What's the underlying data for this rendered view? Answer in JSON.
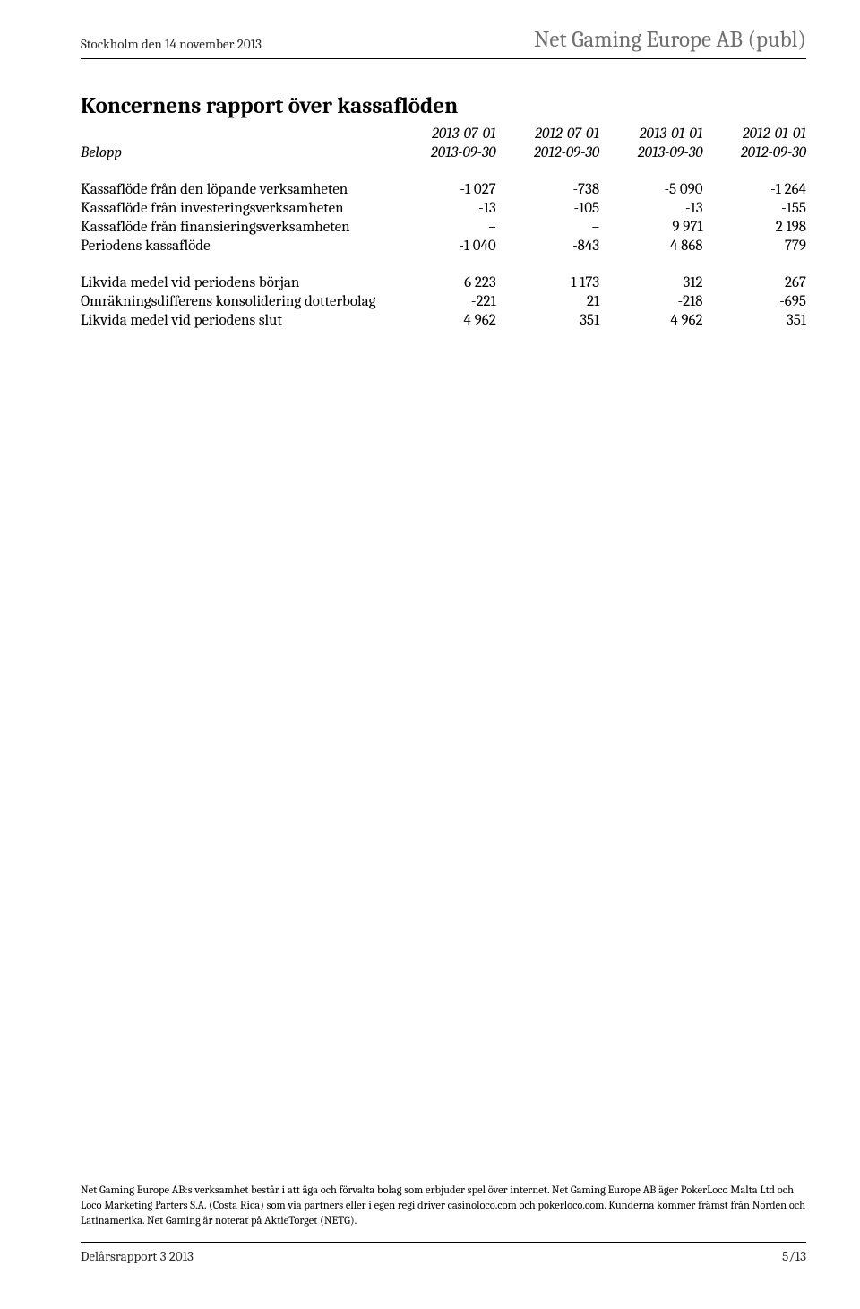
{
  "header": {
    "left": "Stockholm den 14 november 2013",
    "right": "Net Gaming Europe AB (publ)"
  },
  "title": "Koncernens rapport över kassaflöden",
  "table": {
    "period_header_top": [
      "2013-07-01",
      "2012-07-01",
      "2013-01-01",
      "2012-01-01"
    ],
    "period_header_bot": [
      "2013-09-30",
      "2012-09-30",
      "2013-09-30",
      "2012-09-30"
    ],
    "belopp_label": "Belopp",
    "rows_a": [
      {
        "label": "Kassaflöde från den löpande verksamheten",
        "v": [
          "-1 027",
          "-738",
          "-5 090",
          "-1 264"
        ]
      },
      {
        "label": "Kassaflöde från investeringsverksamheten",
        "v": [
          "-13",
          "-105",
          "-13",
          "-155"
        ]
      },
      {
        "label": "Kassaflöde från finansieringsverksamheten",
        "v": [
          "–",
          "–",
          "9 971",
          "2 198"
        ]
      }
    ],
    "row_bold": {
      "label": "Periodens kassaflöde",
      "v": [
        "-1 040",
        "-843",
        "4 868",
        "779"
      ]
    },
    "rows_b": [
      {
        "label": "Likvida medel vid periodens början",
        "v": [
          "6 223",
          "1 173",
          "312",
          "267"
        ]
      },
      {
        "label": "Omräkningsdifferens konsolidering dotterbolag",
        "v": [
          "-221",
          "21",
          "-218",
          "-695"
        ]
      },
      {
        "label": "Likvida medel vid periodens slut",
        "v": [
          "4 962",
          "351",
          "4 962",
          "351"
        ]
      }
    ]
  },
  "footer": {
    "note": "Net Gaming Europe AB:s verksamhet består i att äga och förvalta bolag som erbjuder spel över internet. Net Gaming Europe AB äger PokerLoco Malta Ltd och Loco Marketing Parters S.A. (Costa Rica) som via partners eller i egen regi driver casinoloco.com och pokerloco.com. Kunderna kommer främst från Norden och Latinamerika. Net Gaming är noterat på AktieTorget (NETG).",
    "left": "Delårsrapport 3 2013",
    "right": "5/13"
  }
}
